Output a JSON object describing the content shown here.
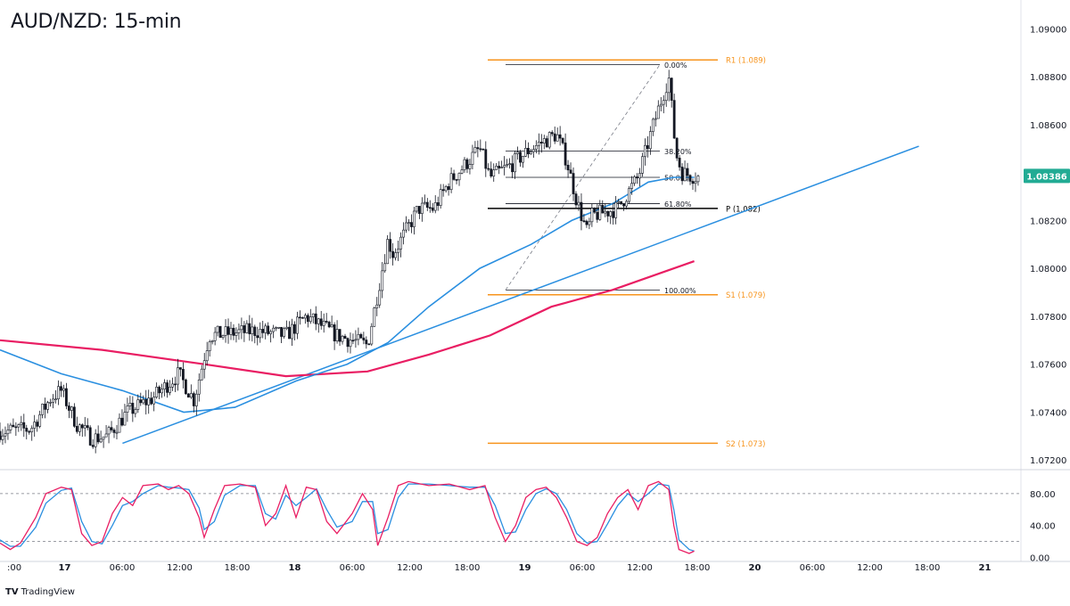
{
  "header": {
    "title": "AUD/NZD: 15-min"
  },
  "footer": {
    "logo": "TV",
    "brand": "TradingView"
  },
  "chart_data": {
    "type": "candlestick",
    "symbol": "AUD/NZD",
    "timeframe": "15-min",
    "price_axis": {
      "ticks": [
        "1.09000",
        "1.08800",
        "1.08600",
        "1.08400",
        "1.08200",
        "1.08000",
        "1.07800",
        "1.07600",
        "1.07400",
        "1.07200"
      ],
      "range": [
        1.0716,
        1.0912
      ]
    },
    "time_axis": {
      "ticks": [
        ":00",
        "17",
        "06:00",
        "12:00",
        "18:00",
        "18",
        "06:00",
        "12:00",
        "18:00",
        "19",
        "06:00",
        "12:00",
        "18:00",
        "20",
        "06:00",
        "12:00",
        "18:00",
        "21"
      ],
      "bold_ticks": [
        "17",
        "18",
        "19",
        "20",
        "21"
      ]
    },
    "current_price": {
      "label": "1.08386",
      "value": 1.08386,
      "color": "#22ab94"
    },
    "levels": [
      {
        "label": "R1 (1.089)",
        "value": 1.0887,
        "color": "#f7941d"
      },
      {
        "label": "P (1.082)",
        "value": 1.0825,
        "color": "#000000"
      },
      {
        "label": "S1 (1.079)",
        "value": 1.0789,
        "color": "#f7941d"
      },
      {
        "label": "S2 (1.073)",
        "value": 1.0727,
        "color": "#f7941d"
      }
    ],
    "fibonacci": [
      {
        "label": "0.00%",
        "value": 1.0885
      },
      {
        "label": "38.20%",
        "value": 1.0849
      },
      {
        "label": "50.00%",
        "value": 1.0838
      },
      {
        "label": "61.80%",
        "value": 1.0827
      },
      {
        "label": "100.00%",
        "value": 1.0791
      }
    ],
    "close_path": [
      [
        0,
        1.0732
      ],
      [
        0.03,
        1.0733
      ],
      [
        0.05,
        1.0746
      ],
      [
        0.06,
        1.0749
      ],
      [
        0.075,
        1.0735
      ],
      [
        0.09,
        1.0729
      ],
      [
        0.105,
        1.073
      ],
      [
        0.125,
        1.074
      ],
      [
        0.15,
        1.0746
      ],
      [
        0.175,
        1.0756
      ],
      [
        0.19,
        1.0745
      ],
      [
        0.205,
        1.0772
      ],
      [
        0.25,
        1.0774
      ],
      [
        0.28,
        1.0772
      ],
      [
        0.3,
        1.078
      ],
      [
        0.33,
        1.0772
      ],
      [
        0.36,
        1.0768
      ],
      [
        0.37,
        1.079
      ],
      [
        0.38,
        1.0812
      ],
      [
        0.385,
        1.0806
      ],
      [
        0.41,
        1.0825
      ],
      [
        0.425,
        1.0825
      ],
      [
        0.44,
        1.0836
      ],
      [
        0.47,
        1.085
      ],
      [
        0.48,
        1.0838
      ],
      [
        0.5,
        1.0843
      ],
      [
        0.52,
        1.085
      ],
      [
        0.545,
        1.0856
      ],
      [
        0.555,
        1.0845
      ],
      [
        0.565,
        1.0828
      ],
      [
        0.575,
        1.0815
      ],
      [
        0.58,
        1.0822
      ],
      [
        0.605,
        1.0825
      ],
      [
        0.625,
        1.0838
      ],
      [
        0.64,
        1.086
      ],
      [
        0.655,
        1.088
      ],
      [
        0.662,
        1.0848
      ],
      [
        0.668,
        1.084
      ],
      [
        0.675,
        1.0839
      ],
      [
        0.685,
        1.0838
      ]
    ],
    "indicators": {
      "ma_fast": {
        "color": "#2a8fe0",
        "points": [
          [
            0,
            1.0766
          ],
          [
            0.06,
            1.0756
          ],
          [
            0.12,
            1.0749
          ],
          [
            0.18,
            1.074
          ],
          [
            0.23,
            1.0742
          ],
          [
            0.29,
            1.0753
          ],
          [
            0.34,
            1.076
          ],
          [
            0.38,
            1.0769
          ],
          [
            0.42,
            1.0784
          ],
          [
            0.47,
            1.08
          ],
          [
            0.52,
            1.081
          ],
          [
            0.56,
            1.082
          ],
          [
            0.6,
            1.0827
          ],
          [
            0.635,
            1.0836
          ],
          [
            0.66,
            1.0838
          ],
          [
            0.68,
            1.0838
          ]
        ]
      },
      "ma_slow": {
        "color": "#e91e63",
        "points": [
          [
            0,
            1.077
          ],
          [
            0.1,
            1.0766
          ],
          [
            0.2,
            1.076
          ],
          [
            0.28,
            1.0755
          ],
          [
            0.36,
            1.0757
          ],
          [
            0.42,
            1.0764
          ],
          [
            0.48,
            1.0772
          ],
          [
            0.54,
            1.0784
          ],
          [
            0.6,
            1.0791
          ],
          [
            0.64,
            1.0797
          ],
          [
            0.68,
            1.0803
          ]
        ]
      },
      "trendline": {
        "color": "#2a8fe0",
        "points": [
          [
            0.12,
            1.0727
          ],
          [
            0.9,
            1.0851
          ]
        ]
      }
    },
    "oscillator": {
      "type": "stochastic",
      "ticks": [
        "80.00",
        "40.00",
        "0.00"
      ],
      "levels": [
        80,
        20
      ],
      "range": [
        -5,
        110
      ],
      "k_color": "#e91e63",
      "d_color": "#2a8fe0",
      "k_points": [
        [
          0,
          18
        ],
        [
          0.01,
          10
        ],
        [
          0.02,
          18
        ],
        [
          0.035,
          50
        ],
        [
          0.045,
          80
        ],
        [
          0.06,
          88
        ],
        [
          0.07,
          85
        ],
        [
          0.08,
          30
        ],
        [
          0.09,
          15
        ],
        [
          0.1,
          20
        ],
        [
          0.11,
          55
        ],
        [
          0.12,
          75
        ],
        [
          0.13,
          65
        ],
        [
          0.14,
          90
        ],
        [
          0.155,
          92
        ],
        [
          0.165,
          85
        ],
        [
          0.175,
          90
        ],
        [
          0.185,
          80
        ],
        [
          0.195,
          50
        ],
        [
          0.2,
          25
        ],
        [
          0.21,
          60
        ],
        [
          0.22,
          90
        ],
        [
          0.235,
          92
        ],
        [
          0.25,
          88
        ],
        [
          0.26,
          40
        ],
        [
          0.27,
          55
        ],
        [
          0.28,
          90
        ],
        [
          0.29,
          50
        ],
        [
          0.3,
          88
        ],
        [
          0.31,
          85
        ],
        [
          0.32,
          45
        ],
        [
          0.33,
          30
        ],
        [
          0.345,
          55
        ],
        [
          0.355,
          80
        ],
        [
          0.365,
          60
        ],
        [
          0.37,
          15
        ],
        [
          0.38,
          50
        ],
        [
          0.39,
          90
        ],
        [
          0.4,
          95
        ],
        [
          0.42,
          90
        ],
        [
          0.44,
          92
        ],
        [
          0.46,
          85
        ],
        [
          0.475,
          90
        ],
        [
          0.485,
          50
        ],
        [
          0.495,
          20
        ],
        [
          0.505,
          40
        ],
        [
          0.515,
          75
        ],
        [
          0.525,
          85
        ],
        [
          0.535,
          88
        ],
        [
          0.545,
          75
        ],
        [
          0.555,
          50
        ],
        [
          0.565,
          20
        ],
        [
          0.575,
          15
        ],
        [
          0.585,
          25
        ],
        [
          0.595,
          55
        ],
        [
          0.605,
          75
        ],
        [
          0.615,
          85
        ],
        [
          0.625,
          60
        ],
        [
          0.635,
          90
        ],
        [
          0.645,
          95
        ],
        [
          0.655,
          85
        ],
        [
          0.66,
          40
        ],
        [
          0.665,
          10
        ],
        [
          0.675,
          5
        ],
        [
          0.68,
          8
        ]
      ],
      "d_points": [
        [
          0,
          22
        ],
        [
          0.01,
          14
        ],
        [
          0.02,
          14
        ],
        [
          0.035,
          38
        ],
        [
          0.045,
          68
        ],
        [
          0.06,
          84
        ],
        [
          0.07,
          87
        ],
        [
          0.08,
          45
        ],
        [
          0.09,
          20
        ],
        [
          0.1,
          17
        ],
        [
          0.11,
          40
        ],
        [
          0.12,
          65
        ],
        [
          0.13,
          70
        ],
        [
          0.14,
          80
        ],
        [
          0.155,
          90
        ],
        [
          0.165,
          88
        ],
        [
          0.175,
          87
        ],
        [
          0.185,
          85
        ],
        [
          0.195,
          62
        ],
        [
          0.2,
          35
        ],
        [
          0.21,
          45
        ],
        [
          0.22,
          78
        ],
        [
          0.235,
          90
        ],
        [
          0.25,
          90
        ],
        [
          0.26,
          55
        ],
        [
          0.27,
          48
        ],
        [
          0.28,
          78
        ],
        [
          0.29,
          65
        ],
        [
          0.3,
          75
        ],
        [
          0.31,
          86
        ],
        [
          0.32,
          60
        ],
        [
          0.33,
          38
        ],
        [
          0.345,
          45
        ],
        [
          0.355,
          70
        ],
        [
          0.365,
          70
        ],
        [
          0.37,
          30
        ],
        [
          0.38,
          35
        ],
        [
          0.39,
          75
        ],
        [
          0.4,
          92
        ],
        [
          0.42,
          92
        ],
        [
          0.44,
          90
        ],
        [
          0.46,
          88
        ],
        [
          0.475,
          88
        ],
        [
          0.485,
          65
        ],
        [
          0.495,
          30
        ],
        [
          0.505,
          32
        ],
        [
          0.515,
          60
        ],
        [
          0.525,
          80
        ],
        [
          0.535,
          86
        ],
        [
          0.545,
          80
        ],
        [
          0.555,
          60
        ],
        [
          0.565,
          30
        ],
        [
          0.575,
          18
        ],
        [
          0.585,
          20
        ],
        [
          0.595,
          42
        ],
        [
          0.605,
          65
        ],
        [
          0.615,
          80
        ],
        [
          0.625,
          70
        ],
        [
          0.635,
          80
        ],
        [
          0.645,
          92
        ],
        [
          0.655,
          90
        ],
        [
          0.66,
          60
        ],
        [
          0.665,
          22
        ],
        [
          0.675,
          10
        ],
        [
          0.68,
          8
        ]
      ]
    }
  }
}
